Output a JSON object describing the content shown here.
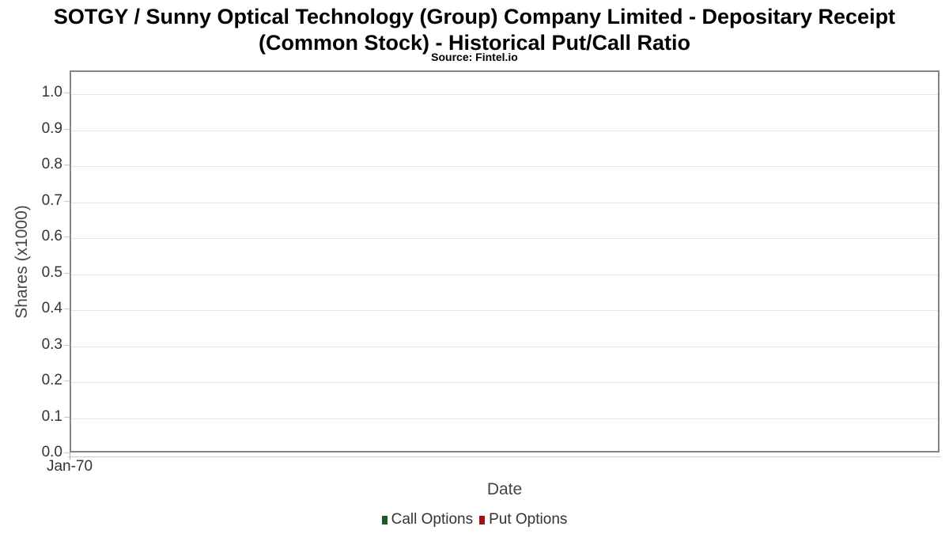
{
  "chart_data": {
    "type": "line",
    "title": "SOTGY / Sunny Optical Technology (Group) Company Limited - Depositary Receipt (Common Stock) - Historical Put/Call Ratio",
    "title_line1": "SOTGY / Sunny Optical Technology (Group) Company Limited - Depositary Receipt",
    "title_line2": "(Common Stock) - Historical Put/Call Ratio",
    "subtitle": "Source: Fintel.io",
    "xlabel": "Date",
    "ylabel": "Shares (x1000)",
    "x_ticks": [
      "Jan-70"
    ],
    "y_ticks": [
      "1.0",
      "0.9",
      "0.8",
      "0.7",
      "0.6",
      "0.5",
      "0.4",
      "0.3",
      "0.2",
      "0.1",
      "0.0"
    ],
    "ylim": [
      0.0,
      1.06
    ],
    "grid": "horizontal",
    "legend_position": "bottom-center",
    "categories": [],
    "series": [
      {
        "name": "Call Options",
        "color": "#1a5b28",
        "values": []
      },
      {
        "name": "Put Options",
        "color": "#a31111",
        "values": []
      }
    ]
  },
  "colors": {
    "plot_border": "#858585",
    "gridline": "#e5e5e5",
    "axis_text": "#333333",
    "axis_title_text": "#444444",
    "title_text": "#000000"
  }
}
